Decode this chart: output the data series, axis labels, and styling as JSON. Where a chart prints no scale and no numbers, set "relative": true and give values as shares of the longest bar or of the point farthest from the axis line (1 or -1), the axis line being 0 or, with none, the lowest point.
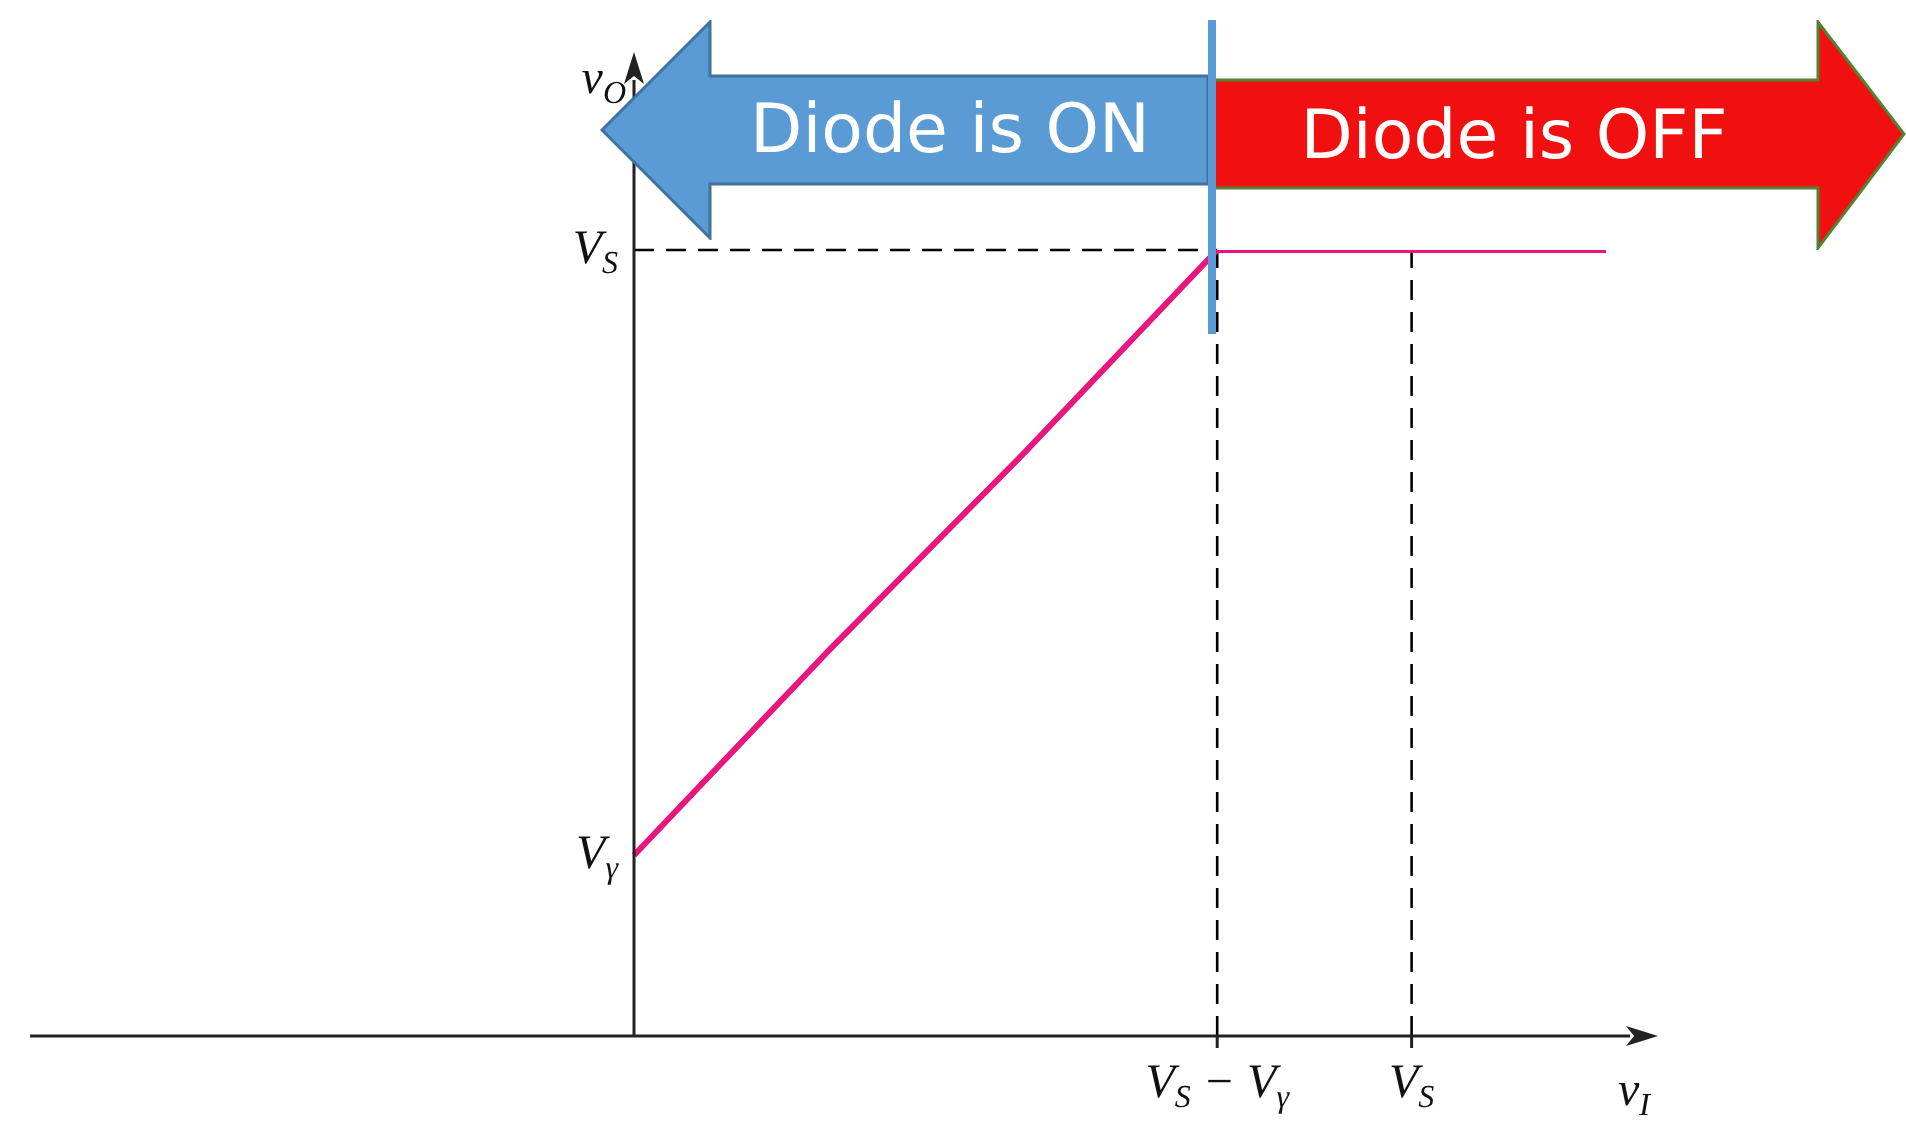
{
  "chart_data": {
    "type": "line",
    "relative": true,
    "xlabel": "v$_{I}$",
    "ylabel": "v$_{O}$",
    "annotations": [
      "Diode is ON",
      "Diode is OFF",
      "V$_{γ}$"
    ],
    "categories": [
      null,
      null,
      null,
      "V$_{S}$ − V$_{γ}$",
      "V$_{S}$",
      null
    ],
    "series": [
      {
        "color": "#e8177f",
        "values": [
          0.23,
          0.49,
          0.74,
          1,
          1,
          1
        ]
      }
    ],
    "ref_lines": [
      {
        "axis": "y",
        "value": 1,
        "label": "V$_{S}$",
        "color": "#000000",
        "line_style": "dashed"
      },
      {
        "axis": "x",
        "value": "V$_{S}$ − V$_{γ}$",
        "color": "#000000",
        "line_style": "dashed"
      },
      {
        "axis": "x",
        "value": "V$_{S}$",
        "color": "#000000",
        "line_style": "dashed"
      }
    ],
    "marker": "none",
    "line_style": "solid"
  }
}
